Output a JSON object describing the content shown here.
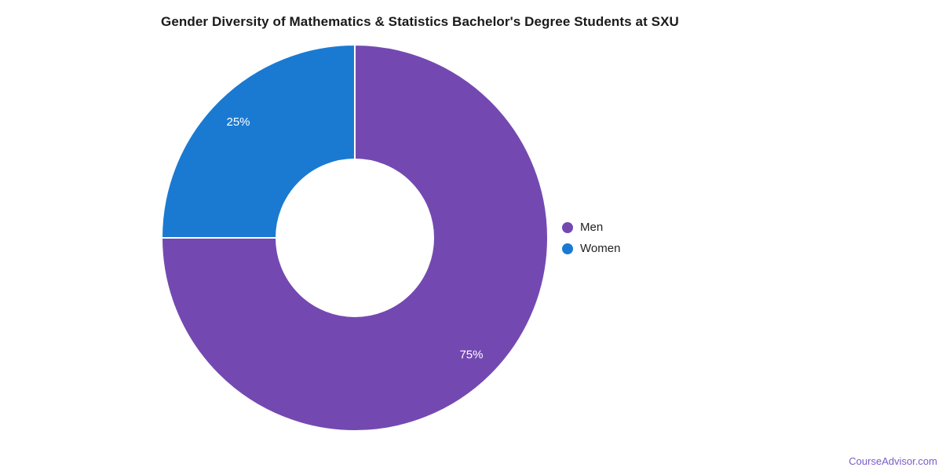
{
  "title": "Gender Diversity of Mathematics & Statistics Bachelor's Degree Students at SXU",
  "watermark": "CourseAdvisor.com",
  "chart_data": {
    "type": "pie",
    "donut": true,
    "title": "Gender Diversity of Mathematics & Statistics Bachelor's Degree Students at SXU",
    "categories": [
      "Men",
      "Women"
    ],
    "values": [
      75,
      25
    ],
    "labels": [
      "75%",
      "25%"
    ],
    "colors": [
      "#7349b1",
      "#1a7ad2"
    ],
    "start_angle_deg": 0,
    "direction": "clockwise",
    "legend_position": "right",
    "slice_separator_color": "#ffffff"
  }
}
